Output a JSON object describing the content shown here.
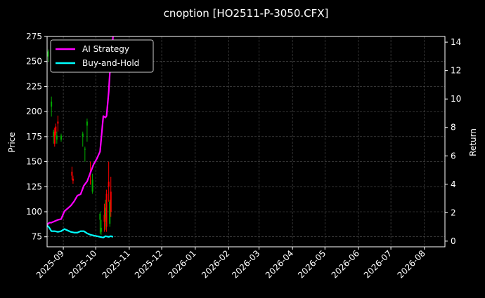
{
  "chart_data": {
    "type": "candlestick+line",
    "title": "cnoption [HO2511-P-3050.CFX]",
    "xlabel": "",
    "ylabel_left": "Price",
    "ylabel_right": "Return",
    "ylim_left": [
      65,
      275
    ],
    "ylim_right": [
      -0.4,
      14.4
    ],
    "xlim": [
      "2025-08-17",
      "2026-08-20"
    ],
    "grid": true,
    "legend_position": "top-left",
    "x_ticks": [
      "2025-09",
      "2025-10",
      "2025-11",
      "2025-12",
      "2026-01",
      "2026-02",
      "2026-03",
      "2026-04",
      "2026-05",
      "2026-06",
      "2026-07",
      "2026-08"
    ],
    "y_ticks_left": [
      75,
      100,
      125,
      150,
      175,
      200,
      225,
      250,
      275
    ],
    "y_ticks_right": [
      0,
      2,
      4,
      6,
      8,
      10,
      12,
      14
    ],
    "colors": {
      "up": "#00aa00",
      "down": "#ff0000",
      "ai_strategy": "#ff00ff",
      "buy_and_hold": "#00ffff",
      "grid": "#555555"
    },
    "series": [
      {
        "name": "AI Strategy",
        "axis": "right",
        "x": [
          "2025-08-17",
          "2025-08-19",
          "2025-08-21",
          "2025-08-24",
          "2025-08-27",
          "2025-08-30",
          "2025-09-02",
          "2025-09-05",
          "2025-09-08",
          "2025-09-11",
          "2025-09-14",
          "2025-09-17",
          "2025-09-20",
          "2025-09-23",
          "2025-09-26",
          "2025-09-29",
          "2025-10-02",
          "2025-10-05",
          "2025-10-08",
          "2025-10-10",
          "2025-10-11",
          "2025-10-13",
          "2025-10-14",
          "2025-10-15",
          "2025-10-16",
          "2025-10-17"
        ],
        "values": [
          1.15,
          1.3,
          1.3,
          1.4,
          1.5,
          1.55,
          2.1,
          2.3,
          2.5,
          2.8,
          3.2,
          3.3,
          3.9,
          4.2,
          4.8,
          5.4,
          5.8,
          6.3,
          8.8,
          8.7,
          8.8,
          10.5,
          11.8,
          12.2,
          13.4,
          14.4
        ]
      },
      {
        "name": "Buy-and-Hold",
        "axis": "right",
        "x": [
          "2025-08-17",
          "2025-08-19",
          "2025-08-21",
          "2025-08-24",
          "2025-08-27",
          "2025-08-30",
          "2025-09-02",
          "2025-09-05",
          "2025-09-08",
          "2025-09-11",
          "2025-09-14",
          "2025-09-17",
          "2025-09-20",
          "2025-09-23",
          "2025-09-26",
          "2025-09-29",
          "2025-10-02",
          "2025-10-05",
          "2025-10-08",
          "2025-10-10",
          "2025-10-13",
          "2025-10-15",
          "2025-10-17"
        ],
        "values": [
          1.1,
          0.95,
          0.7,
          0.7,
          0.65,
          0.7,
          0.85,
          0.75,
          0.65,
          0.6,
          0.6,
          0.7,
          0.7,
          0.55,
          0.45,
          0.4,
          0.35,
          0.3,
          0.25,
          0.35,
          0.3,
          0.35,
          0.3
        ]
      }
    ],
    "candles": [
      {
        "date": "2025-08-18",
        "open": 255,
        "high": 262,
        "low": 250,
        "close": 260
      },
      {
        "date": "2025-08-21",
        "open": 205,
        "high": 215,
        "low": 195,
        "close": 210
      },
      {
        "date": "2025-08-23",
        "open": 175,
        "high": 182,
        "low": 168,
        "close": 180
      },
      {
        "date": "2025-08-24",
        "open": 180,
        "high": 184,
        "low": 165,
        "close": 168
      },
      {
        "date": "2025-08-25",
        "open": 185,
        "high": 188,
        "low": 176,
        "close": 179
      },
      {
        "date": "2025-08-26",
        "open": 172,
        "high": 180,
        "low": 168,
        "close": 176
      },
      {
        "date": "2025-08-27",
        "open": 190,
        "high": 196,
        "low": 180,
        "close": 188
      },
      {
        "date": "2025-08-30",
        "open": 172,
        "high": 178,
        "low": 170,
        "close": 176
      },
      {
        "date": "2025-09-09",
        "open": 140,
        "high": 145,
        "low": 132,
        "close": 136
      },
      {
        "date": "2025-09-10",
        "open": 133,
        "high": 136,
        "low": 128,
        "close": 131
      },
      {
        "date": "2025-09-19",
        "open": 175,
        "high": 180,
        "low": 165,
        "close": 178
      },
      {
        "date": "2025-09-21",
        "open": 162,
        "high": 165,
        "low": 150,
        "close": 163
      },
      {
        "date": "2025-09-23",
        "open": 186,
        "high": 193,
        "low": 170,
        "close": 190
      },
      {
        "date": "2025-09-26",
        "open": 140,
        "high": 150,
        "low": 127,
        "close": 138
      },
      {
        "date": "2025-09-28",
        "open": 120,
        "high": 138,
        "low": 118,
        "close": 132
      },
      {
        "date": "2025-10-05",
        "open": 92,
        "high": 100,
        "low": 78,
        "close": 98
      },
      {
        "date": "2025-10-06",
        "open": 80,
        "high": 92,
        "low": 77,
        "close": 84
      },
      {
        "date": "2025-10-09",
        "open": 97,
        "high": 108,
        "low": 80,
        "close": 90
      },
      {
        "date": "2025-10-10",
        "open": 95,
        "high": 112,
        "low": 82,
        "close": 104
      },
      {
        "date": "2025-10-11",
        "open": 118,
        "high": 122,
        "low": 80,
        "close": 85
      },
      {
        "date": "2025-10-13",
        "open": 130,
        "high": 150,
        "low": 110,
        "close": 125
      },
      {
        "date": "2025-10-14",
        "open": 88,
        "high": 112,
        "low": 85,
        "close": 110
      },
      {
        "date": "2025-10-15",
        "open": 120,
        "high": 135,
        "low": 95,
        "close": 100
      }
    ]
  }
}
